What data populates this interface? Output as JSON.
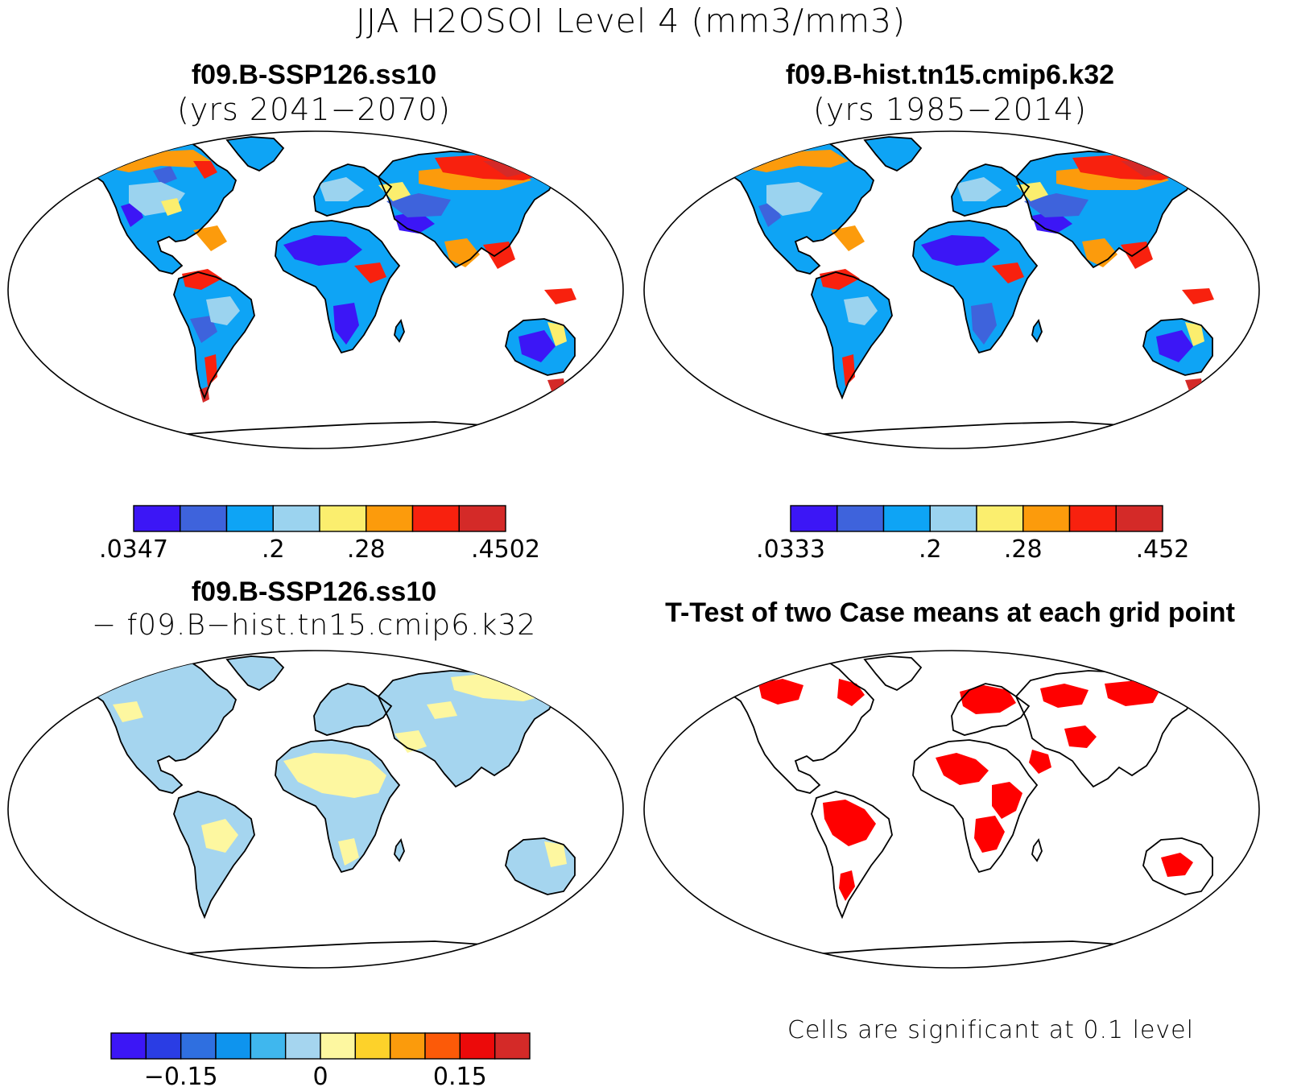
{
  "figure": {
    "title": "JJA H2OSOI Level 4 (mm3/mm3)"
  },
  "panels": [
    {
      "case": "f09.B-SSP126.ss10",
      "subtitle": "(yrs 2041−2070)",
      "colorbar": {
        "colors": [
          "#3c16f6",
          "#3e63dc",
          "#0ea4f5",
          "#9bd3ef",
          "#fbee6e",
          "#fc9b0c",
          "#f8210e",
          "#d42a28"
        ],
        "tick_labels": [
          ".0347",
          ".2",
          ".28",
          ".4502"
        ]
      }
    },
    {
      "case": "f09.B-hist.tn15.cmip6.k32",
      "subtitle": "(yrs 1985−2014)",
      "colorbar": {
        "colors": [
          "#3c16f6",
          "#3e63dc",
          "#0ea4f5",
          "#9bd3ef",
          "#fbee6e",
          "#fc9b0c",
          "#f8210e",
          "#d42a28"
        ],
        "tick_labels": [
          ".0333",
          ".2",
          ".28",
          ".452"
        ]
      }
    },
    {
      "case": "f09.B-SSP126.ss10",
      "subtitle": "− f09.B−hist.tn15.cmip6.k32",
      "colorbar": {
        "colors": [
          "#3c16f6",
          "#2a3de4",
          "#2f6fe0",
          "#0e94ee",
          "#3fb7ee",
          "#a5d5ef",
          "#fdf7a0",
          "#fdd22a",
          "#fb9b0c",
          "#fc5a08",
          "#ec0a0a",
          "#d42a28"
        ],
        "tick_labels": [
          "−0.15",
          "0",
          "0.15"
        ]
      }
    },
    {
      "title": "T-Test of two Case means at each grid point",
      "footnote": "Cells are significant at 0.1 level",
      "significant_color": "#ff0000"
    }
  ]
}
